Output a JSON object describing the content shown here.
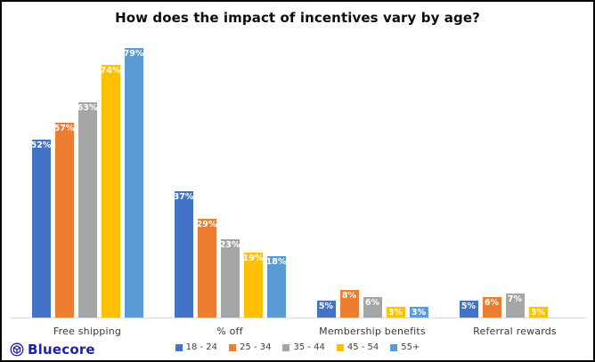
{
  "chart_data": {
    "type": "bar",
    "title": "How does the impact of incentives vary by age?",
    "categories": [
      "Free shipping",
      "% off",
      "Membership benefits",
      "Referral rewards"
    ],
    "series": [
      {
        "name": "18 - 24",
        "color": "#4472C4",
        "values": [
          52,
          37,
          5,
          5
        ]
      },
      {
        "name": "25 - 34",
        "color": "#ED7D31",
        "values": [
          57,
          29,
          8,
          6
        ]
      },
      {
        "name": "35 - 44",
        "color": "#A5A5A5",
        "values": [
          63,
          23,
          6,
          7
        ]
      },
      {
        "name": "45 - 54",
        "color": "#FFC000",
        "values": [
          74,
          19,
          3,
          3
        ]
      },
      {
        "name": "55+",
        "color": "#5B9BD5",
        "values": [
          79,
          18,
          3,
          null
        ]
      }
    ],
    "value_suffix": "%",
    "data_labels": "inside-end-white-bold",
    "ylim": [
      0,
      82
    ],
    "grid": false,
    "y_axis_visible": false,
    "legend_position": "bottom-center",
    "axis_line_color": "#D9D9D9"
  },
  "branding": {
    "logo_text": "Bluecore",
    "logo_color": "#1E22AA",
    "logo_icon": "bluecore-cube-in-circle"
  }
}
